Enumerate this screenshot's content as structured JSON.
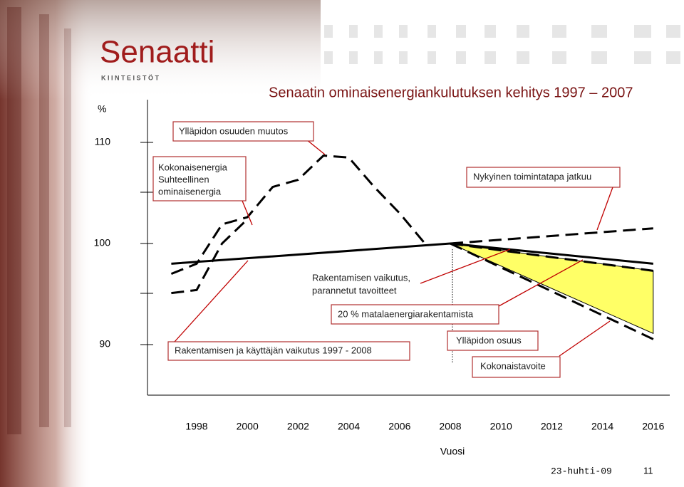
{
  "chart_data": {
    "type": "line",
    "logo": {
      "name": "Senaatti",
      "sub": "K I I N T E I S T Ö T"
    },
    "title": "Senaatin ominaisenergiankulutuksen kehitys 1997 – 2007",
    "y_label": "%",
    "x_label": "Vuosi",
    "xlim": [
      1996,
      2017
    ],
    "xticks": [
      1998,
      2000,
      2002,
      2004,
      2006,
      2008,
      2010,
      2012,
      2014,
      2016
    ],
    "ylim": [
      85,
      114.2
    ],
    "yticks": [
      90,
      100,
      110
    ],
    "series": [
      {
        "color": "#000000",
        "dash": true,
        "x": [
          1997,
          1998,
          1999,
          2000,
          2001,
          2002,
          2003,
          2004,
          2005,
          2006,
          2007
        ],
        "values": [
          97.0,
          98.0,
          101.9,
          102.6,
          105.6,
          106.3,
          108.7,
          108.5,
          105.6,
          103.0,
          100.0
        ]
      },
      {
        "color": "#000000",
        "dash": true,
        "x": [
          1997,
          1998,
          1999,
          2000
        ],
        "values": [
          95.1,
          95.4,
          100.0,
          102.4
        ]
      },
      {
        "color": "#000000",
        "dash": false,
        "x": [
          1997,
          2008,
          2016
        ],
        "values": [
          98.0,
          100.0,
          98.0
        ]
      },
      {
        "color": "#000000",
        "dash": true,
        "x": [
          2008,
          2016
        ],
        "values": [
          100.0,
          101.5
        ]
      },
      {
        "color": "#000000",
        "dash": true,
        "x": [
          2008,
          2016
        ],
        "values": [
          100.0,
          97.3
        ]
      },
      {
        "color": "#000000",
        "dash": true,
        "x": [
          2008,
          2016.2
        ],
        "values": [
          100.0,
          90.3
        ]
      }
    ],
    "area": {
      "color": "#ffff66",
      "x": [
        2008,
        2016
      ],
      "upper": [
        100.0,
        97.3
      ],
      "lower": [
        100.0,
        91.1
      ]
    },
    "annotations": [
      [
        "Ylläpidon osuuden muutos"
      ],
      [
        "Kokonaisenergia",
        "Suhteellinen",
        "ominaisenergia"
      ],
      [
        "Nykyinen toimintatapa jatkuu"
      ],
      [
        "Rakentamisen vaikutus,",
        "parannetut tavoitteet"
      ],
      [
        "20 % matalaenergiarakentamista"
      ],
      [
        "Rakentamisen ja käyttäjän vaikutus 1997 - 2008"
      ],
      [
        "Ylläpidon osuus"
      ],
      [
        "Kokonaistavoite"
      ]
    ],
    "footer": {
      "date": "23-huhti-09",
      "page": "11"
    }
  }
}
